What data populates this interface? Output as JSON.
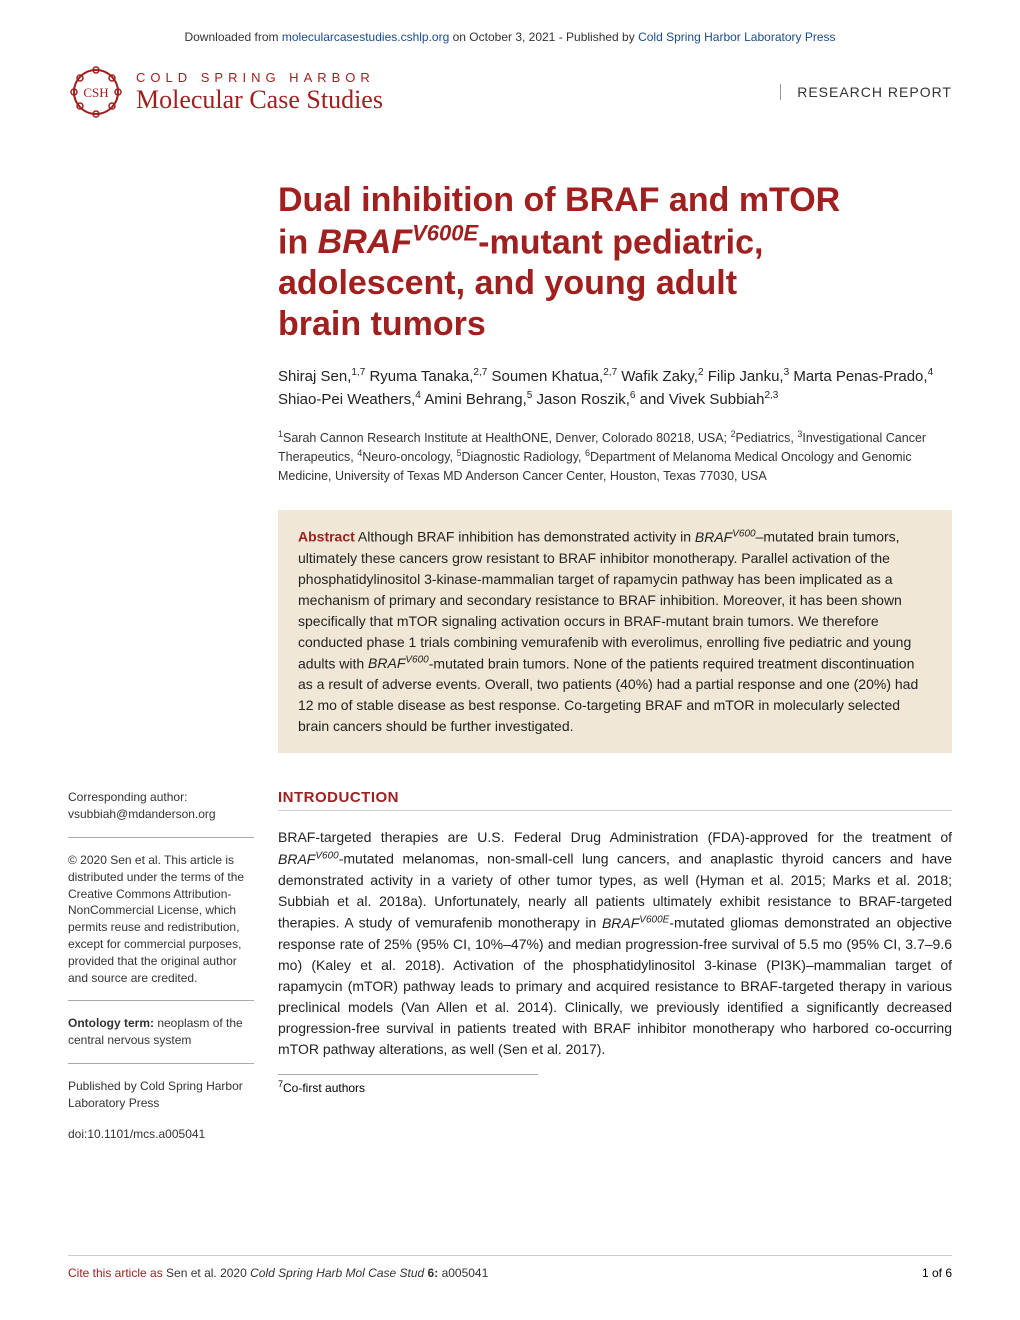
{
  "banner": {
    "prefix": "Downloaded from ",
    "link1": "molecularcasestudies.cshlp.org",
    "middle": " on October 3, 2021 - Published by ",
    "link2": "Cold Spring Harbor Laboratory Press"
  },
  "header": {
    "logo_top": "COLD SPRING HARBOR",
    "logo_bottom": "Molecular Case Studies",
    "csh_label": "CSH",
    "report_type": "RESEARCH REPORT"
  },
  "title": {
    "line1": "Dual inhibition of BRAF and mTOR",
    "line2_pre": "in ",
    "line2_gene": "BRAF",
    "line2_sup": "V600E",
    "line2_post": "-mutant pediatric,",
    "line3": "adolescent, and young adult",
    "line4": "brain tumors"
  },
  "authors_html": "Shiraj Sen,<sup>1,7</sup> Ryuma Tanaka,<sup>2,7</sup> Soumen Khatua,<sup>2,7</sup> Wafik Zaky,<sup>2</sup> Filip Janku,<sup>3</sup> Marta Penas-Prado,<sup>4</sup> Shiao-Pei Weathers,<sup>4</sup> Amini Behrang,<sup>5</sup> Jason Roszik,<sup>6</sup> and Vivek Subbiah<sup>2,3</sup>",
  "affiliations_html": "<sup>1</sup>Sarah Cannon Research Institute at HealthONE, Denver, Colorado 80218, USA; <sup>2</sup>Pediatrics, <sup>3</sup>Investigational Cancer Therapeutics, <sup>4</sup>Neuro-oncology, <sup>5</sup>Diagnostic Radiology, <sup>6</sup>Department of Melanoma Medical Oncology and Genomic Medicine, University of Texas MD Anderson Cancer Center, Houston, Texas 77030, USA",
  "abstract": {
    "label": "Abstract",
    "body_html": " Although BRAF inhibition has demonstrated activity in <span class=\"italic\">BRAF<sup>V600</sup></span>–mutated brain tumors, ultimately these cancers grow resistant to BRAF inhibitor monotherapy. Parallel activation of the phosphatidylinositol 3-kinase-mammalian target of rapamycin pathway has been implicated as a mechanism of primary and secondary resistance to BRAF inhibition. Moreover, it has been shown specifically that mTOR signaling activation occurs in BRAF-mutant brain tumors. We therefore conducted phase 1 trials combining vemurafenib with everolimus, enrolling five pediatric and young adults with <span class=\"italic\">BRAF<sup>V600</sup></span>-mutated brain tumors. None of the patients required treatment discontinuation as a result of adverse events. Overall, two patients (40%) had a partial response and one (20%) had 12 mo of stable disease as best response. Co-targeting BRAF and mTOR in molecularly selected brain cancers should be further investigated."
  },
  "sidebar": {
    "corresponding_label": "Corresponding author:",
    "corresponding_email": "vsubbiah@mdanderson.org",
    "copyright": "© 2020 Sen et al. This article is distributed under the terms of the Creative Commons Attribution-NonCommercial License, which permits reuse and redistribution, except for commercial purposes, provided that the original author and source are credited.",
    "ontology_label": "Ontology term:",
    "ontology_value": " neoplasm of the central nervous system",
    "published_by": "Published by Cold Spring Harbor Laboratory Press",
    "doi": "doi:10.1101/mcs.a005041"
  },
  "introduction": {
    "heading": "INTRODUCTION",
    "body_html": "BRAF-targeted therapies are U.S. Federal Drug Administration (FDA)-approved for the treatment of <span class=\"italic\">BRAF<sup>V600</sup></span>-mutated melanomas, non-small-cell lung cancers, and anaplastic thyroid cancers and have demonstrated activity in a variety of other tumor types, as well (Hyman et al. 2015; Marks et al. 2018; Subbiah et al. 2018a). Unfortunately, nearly all patients ultimately exhibit resistance to BRAF-targeted therapies. A study of vemurafenib monotherapy in <span class=\"italic\">BRAF<sup>V600E</sup></span>-mutated gliomas demonstrated an objective response rate of 25% (95% CI, 10%–47%) and median progression-free survival of 5.5 mo (95% CI, 3.7–9.6 mo) (Kaley et al. 2018). Activation of the phosphatidylinositol 3-kinase (PI3K)–mammalian target of rapamycin (mTOR) pathway leads to primary and acquired resistance to BRAF-targeted therapy in various preclinical models (Van Allen et al. 2014). Clinically, we previously identified a significantly decreased progression-free survival in patients treated with BRAF inhibitor monotherapy who harbored co-occurring mTOR pathway alterations, as well (Sen et al. 2017)."
  },
  "cofirst": "Co-first authors",
  "footer": {
    "cite_label": "Cite this article as ",
    "cite_text": "Sen et al. 2020 ",
    "cite_journal": "Cold Spring Harb Mol Case Stud ",
    "cite_vol": "6: ",
    "cite_id": "a005041",
    "page": "1 of 6"
  },
  "colors": {
    "brand_red": "#a02020",
    "abstract_bg": "#f0e7d6",
    "link_blue": "#1a4b8c",
    "text": "#222222",
    "border_gray": "#cccccc"
  }
}
